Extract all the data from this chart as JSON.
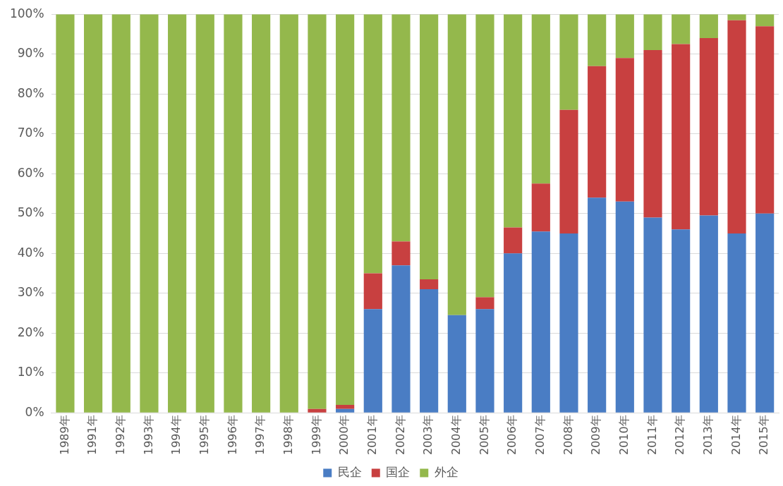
{
  "chart_data": {
    "type": "bar",
    "stacked": true,
    "categories": [
      "1989年",
      "1991年",
      "1992年",
      "1993年",
      "1994年",
      "1995年",
      "1996年",
      "1997年",
      "1998年",
      "1999年",
      "2000年",
      "2001年",
      "2002年",
      "2003年",
      "2004年",
      "2005年",
      "2006年",
      "2007年",
      "2008年",
      "2009年",
      "2010年",
      "2011年",
      "2012年",
      "2013年",
      "2014年",
      "2015年"
    ],
    "series": [
      {
        "name": "民企",
        "color": "#4a7dc4",
        "values": [
          0,
          0,
          0,
          0,
          0,
          0,
          0,
          0,
          0,
          0,
          1,
          26,
          37,
          31,
          24.5,
          26,
          40,
          45.5,
          45,
          54,
          53,
          49,
          46,
          49.5,
          45,
          50
        ]
      },
      {
        "name": "国企",
        "color": "#c84040",
        "values": [
          0,
          0,
          0,
          0,
          0,
          0,
          0,
          0,
          0,
          1,
          1,
          9,
          6,
          2.5,
          0,
          3,
          6.5,
          12,
          31,
          33,
          36,
          42,
          46.5,
          44.5,
          53.5,
          47
        ]
      },
      {
        "name": "外企",
        "color": "#94b84c",
        "values": [
          100,
          100,
          100,
          100,
          100,
          100,
          100,
          100,
          100,
          99,
          98,
          65,
          57,
          66.5,
          75.5,
          71,
          53.5,
          42.5,
          24,
          13,
          11,
          9,
          7.5,
          6,
          1.5,
          3
        ]
      }
    ],
    "ylim": [
      0,
      100
    ],
    "yticks": [
      {
        "value": 0,
        "label": "0%"
      },
      {
        "value": 10,
        "label": "10%"
      },
      {
        "value": 20,
        "label": "20%"
      },
      {
        "value": 30,
        "label": "30%"
      },
      {
        "value": 40,
        "label": "40%"
      },
      {
        "value": 50,
        "label": "50%"
      },
      {
        "value": 60,
        "label": "60%"
      },
      {
        "value": 70,
        "label": "70%"
      },
      {
        "value": 80,
        "label": "80%"
      },
      {
        "value": 90,
        "label": "90%"
      },
      {
        "value": 100,
        "label": "100%"
      }
    ],
    "grid": "y",
    "legend": "bottom"
  }
}
